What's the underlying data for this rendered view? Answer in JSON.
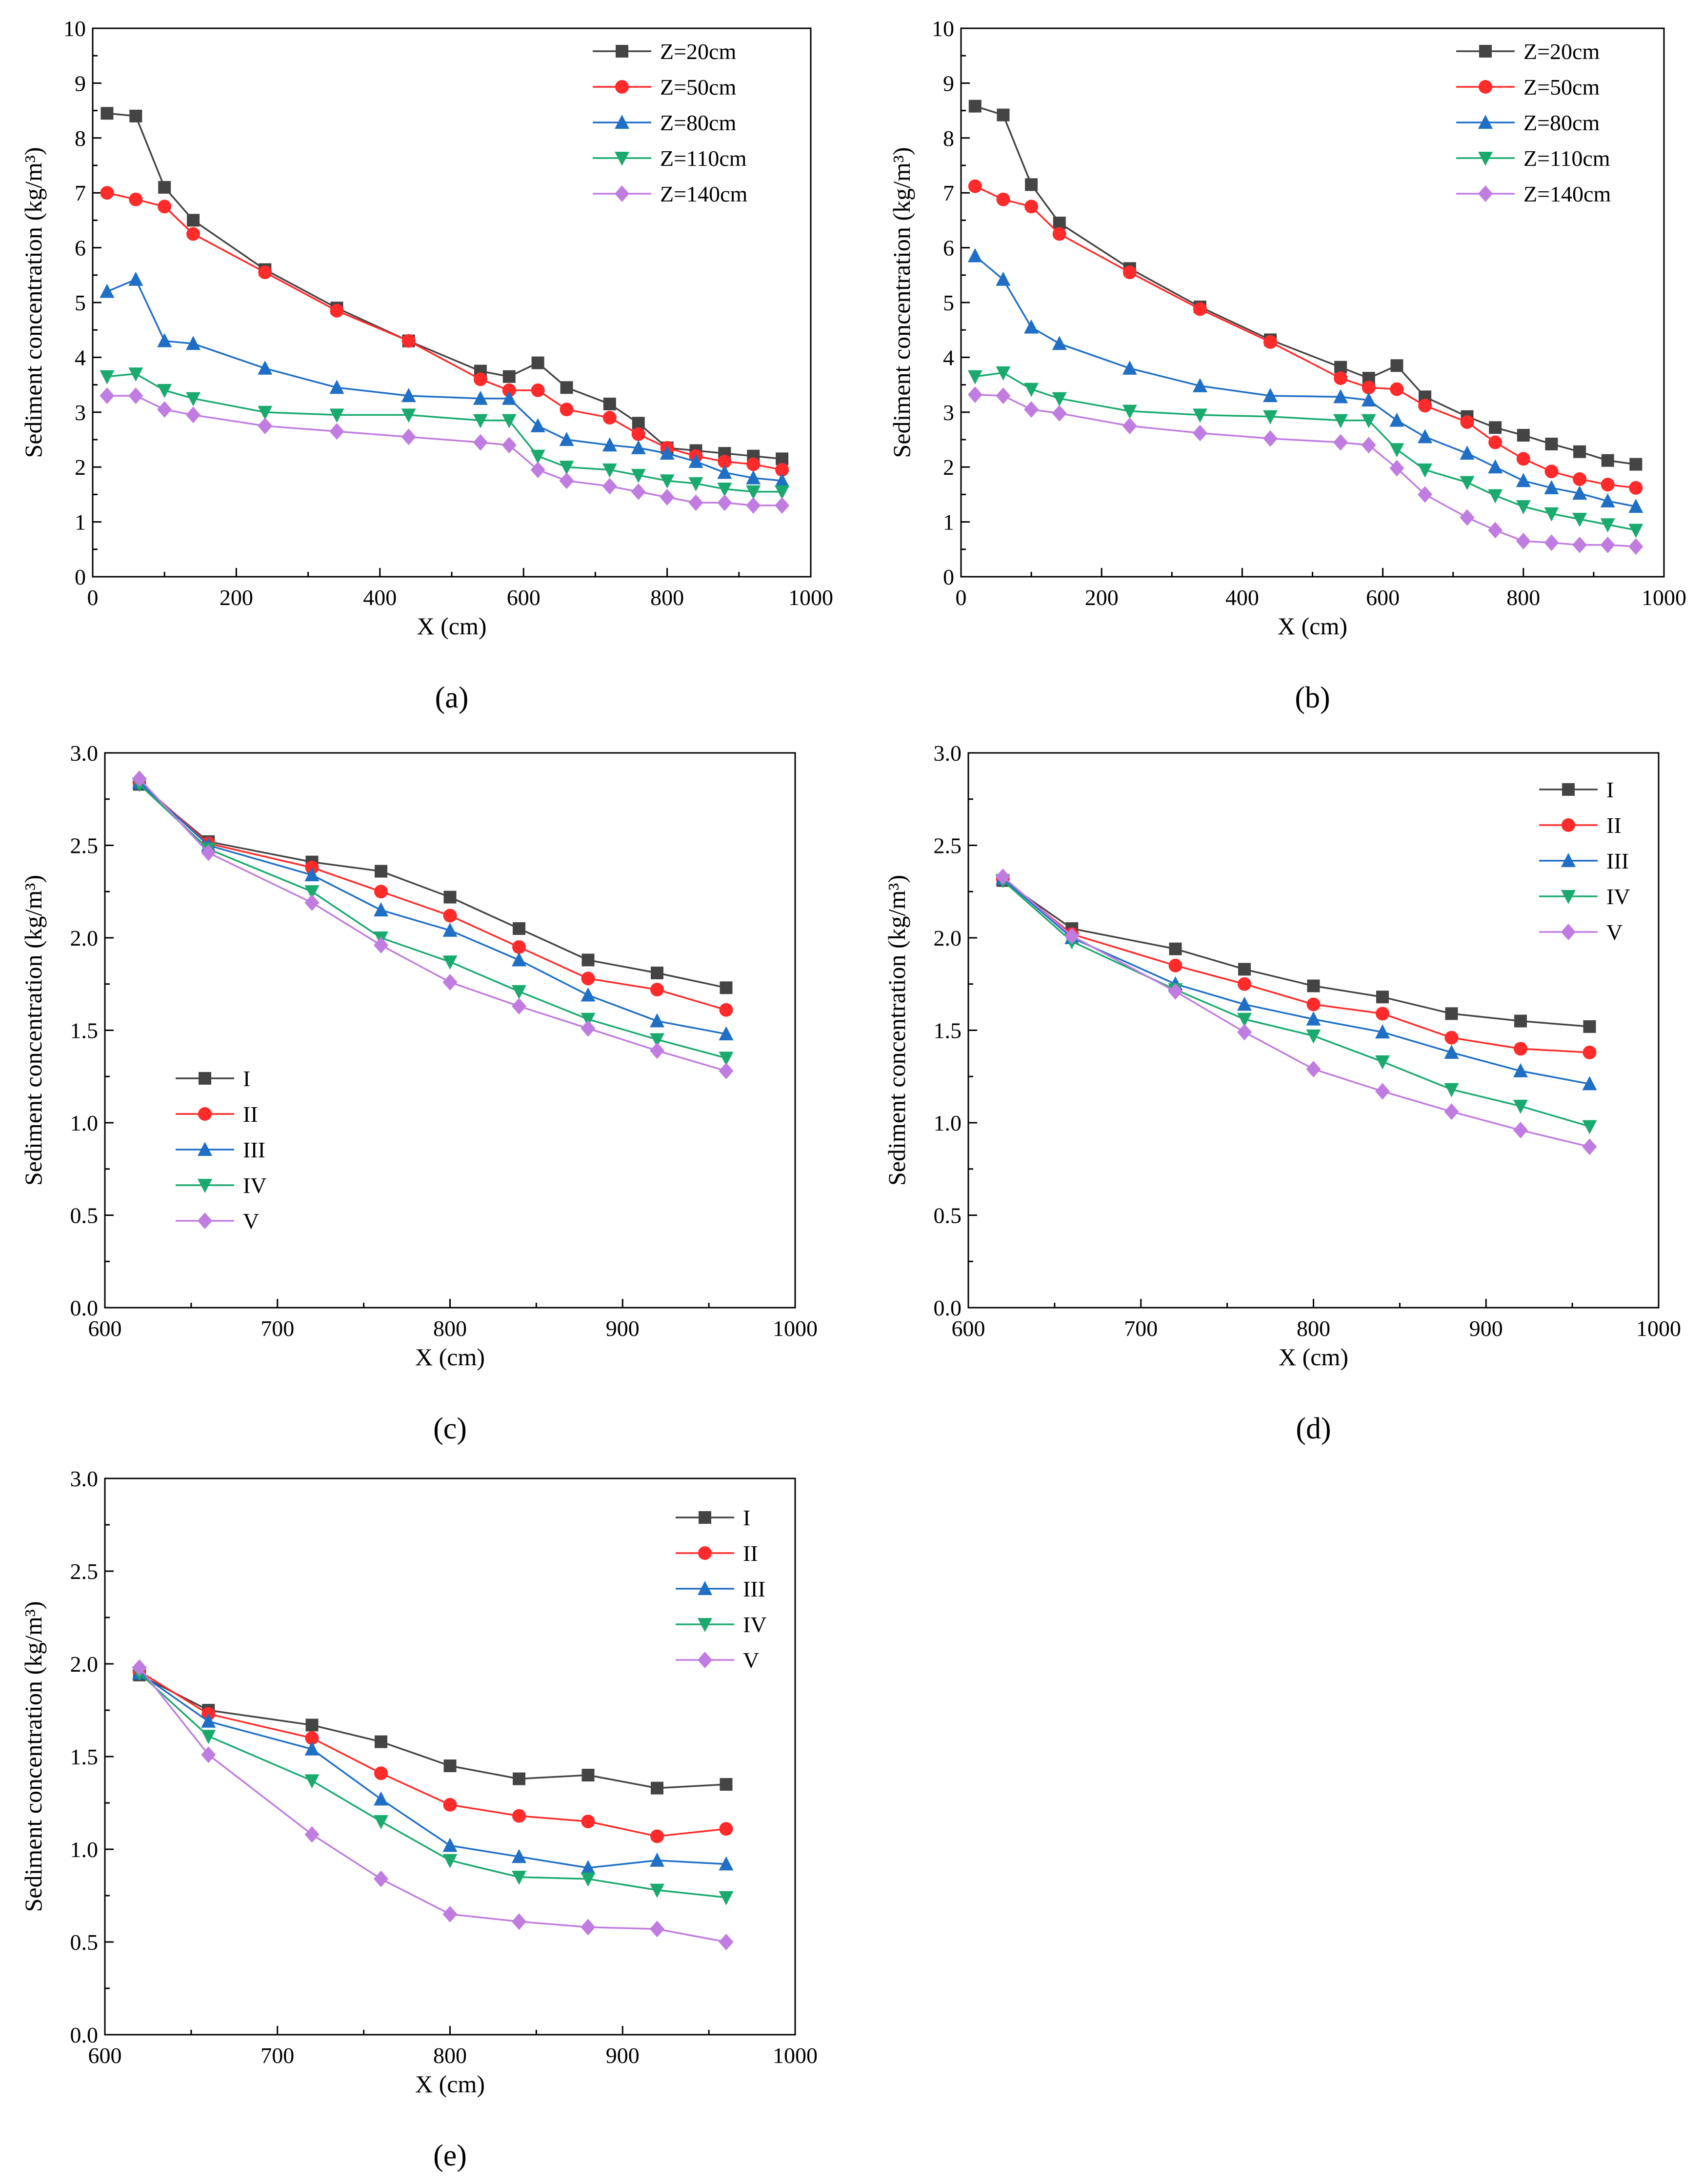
{
  "chart_data": [
    {
      "id": "a",
      "panel_label": "(a)",
      "type": "line",
      "xlabel": "X (cm)",
      "ylabel": "Sediment concentration (kg/m³)",
      "xlim": [
        0,
        1000
      ],
      "ylim": [
        0,
        10
      ],
      "xticks": [
        0,
        200,
        400,
        600,
        800,
        1000
      ],
      "yticks": [
        0,
        1,
        2,
        3,
        4,
        5,
        6,
        7,
        8,
        9,
        10
      ],
      "x": [
        20,
        60,
        100,
        140,
        240,
        340,
        440,
        540,
        580,
        620,
        660,
        720,
        760,
        800,
        840,
        880,
        920,
        960
      ],
      "legend_position": "top-right",
      "series": [
        {
          "name": "Z=20cm",
          "color": "#444444",
          "marker": "square",
          "values": [
            8.45,
            8.4,
            7.1,
            6.5,
            5.6,
            4.9,
            4.3,
            3.75,
            3.65,
            3.9,
            3.45,
            3.15,
            2.8,
            2.35,
            2.3,
            2.25,
            2.2,
            2.15
          ]
        },
        {
          "name": "Z=50cm",
          "color": "#ff2a2a",
          "marker": "circle",
          "values": [
            7.0,
            6.88,
            6.75,
            6.25,
            5.55,
            4.85,
            4.3,
            3.6,
            3.4,
            3.4,
            3.05,
            2.9,
            2.6,
            2.35,
            2.2,
            2.1,
            2.05,
            1.95
          ]
        },
        {
          "name": "Z=80cm",
          "color": "#1f6fc6",
          "marker": "triangle-up",
          "values": [
            5.2,
            5.42,
            4.3,
            4.25,
            3.8,
            3.45,
            3.3,
            3.25,
            3.25,
            2.75,
            2.5,
            2.4,
            2.35,
            2.25,
            2.1,
            1.9,
            1.8,
            1.75
          ]
        },
        {
          "name": "Z=110cm",
          "color": "#1aaa6e",
          "marker": "triangle-down",
          "values": [
            3.65,
            3.7,
            3.4,
            3.25,
            3.0,
            2.95,
            2.95,
            2.85,
            2.85,
            2.2,
            2.0,
            1.95,
            1.85,
            1.75,
            1.7,
            1.6,
            1.55,
            1.55
          ]
        },
        {
          "name": "Z=140cm",
          "color": "#c07ce0",
          "marker": "diamond",
          "values": [
            3.3,
            3.3,
            3.05,
            2.95,
            2.75,
            2.65,
            2.55,
            2.45,
            2.4,
            1.95,
            1.75,
            1.65,
            1.55,
            1.45,
            1.35,
            1.35,
            1.3,
            1.3
          ]
        }
      ]
    },
    {
      "id": "b",
      "panel_label": "(b)",
      "type": "line",
      "xlabel": "X (cm)",
      "ylabel": "Sediment concentration (kg/m³)",
      "xlim": [
        0,
        1000
      ],
      "ylim": [
        0,
        10
      ],
      "xticks": [
        0,
        200,
        400,
        600,
        800,
        1000
      ],
      "yticks": [
        0,
        1,
        2,
        3,
        4,
        5,
        6,
        7,
        8,
        9,
        10
      ],
      "x": [
        20,
        60,
        100,
        140,
        240,
        340,
        440,
        540,
        580,
        620,
        660,
        720,
        760,
        800,
        840,
        880,
        920,
        960
      ],
      "legend_position": "top-right",
      "series": [
        {
          "name": "Z=20cm",
          "color": "#444444",
          "marker": "square",
          "values": [
            8.58,
            8.42,
            7.15,
            6.45,
            5.62,
            4.92,
            4.32,
            3.82,
            3.62,
            3.85,
            3.28,
            2.92,
            2.72,
            2.58,
            2.42,
            2.28,
            2.12,
            2.05
          ]
        },
        {
          "name": "Z=50cm",
          "color": "#ff2a2a",
          "marker": "circle",
          "values": [
            7.12,
            6.88,
            6.75,
            6.25,
            5.55,
            4.88,
            4.28,
            3.62,
            3.45,
            3.42,
            3.12,
            2.82,
            2.45,
            2.15,
            1.92,
            1.78,
            1.68,
            1.62
          ]
        },
        {
          "name": "Z=80cm",
          "color": "#1f6fc6",
          "marker": "triangle-up",
          "values": [
            5.85,
            5.42,
            4.55,
            4.25,
            3.8,
            3.48,
            3.3,
            3.28,
            3.22,
            2.85,
            2.55,
            2.25,
            2.0,
            1.75,
            1.62,
            1.52,
            1.38,
            1.28
          ]
        },
        {
          "name": "Z=110cm",
          "color": "#1aaa6e",
          "marker": "triangle-down",
          "values": [
            3.65,
            3.72,
            3.42,
            3.25,
            3.02,
            2.95,
            2.92,
            2.85,
            2.85,
            2.32,
            1.95,
            1.72,
            1.48,
            1.28,
            1.15,
            1.05,
            0.95,
            0.85
          ]
        },
        {
          "name": "Z=140cm",
          "color": "#c07ce0",
          "marker": "diamond",
          "values": [
            3.32,
            3.3,
            3.05,
            2.98,
            2.75,
            2.62,
            2.52,
            2.45,
            2.4,
            1.98,
            1.5,
            1.08,
            0.85,
            0.65,
            0.62,
            0.58,
            0.58,
            0.55
          ]
        }
      ]
    },
    {
      "id": "c",
      "panel_label": "(c)",
      "type": "line",
      "xlabel": "X (cm)",
      "ylabel": "Sediment concentration (kg/m³)",
      "xlim": [
        600,
        1000
      ],
      "ylim": [
        0,
        3
      ],
      "xticks": [
        600,
        700,
        800,
        900,
        1000
      ],
      "yticks": [
        0.0,
        0.5,
        1.0,
        1.5,
        2.0,
        2.5,
        3.0
      ],
      "x": [
        620,
        660,
        720,
        760,
        800,
        840,
        880,
        920,
        960
      ],
      "legend_position": "lower-left",
      "series": [
        {
          "name": "I",
          "color": "#444444",
          "marker": "square",
          "values": [
            2.83,
            2.52,
            2.41,
            2.36,
            2.22,
            2.05,
            1.88,
            1.81,
            1.73
          ]
        },
        {
          "name": "II",
          "color": "#ff2a2a",
          "marker": "circle",
          "values": [
            2.84,
            2.51,
            2.38,
            2.25,
            2.12,
            1.95,
            1.78,
            1.72,
            1.61
          ]
        },
        {
          "name": "III",
          "color": "#1f6fc6",
          "marker": "triangle-up",
          "values": [
            2.84,
            2.5,
            2.34,
            2.15,
            2.04,
            1.88,
            1.69,
            1.55,
            1.48
          ]
        },
        {
          "name": "IV",
          "color": "#1aaa6e",
          "marker": "triangle-down",
          "values": [
            2.83,
            2.48,
            2.25,
            2.0,
            1.87,
            1.71,
            1.56,
            1.45,
            1.35
          ]
        },
        {
          "name": "V",
          "color": "#c07ce0",
          "marker": "diamond",
          "values": [
            2.86,
            2.46,
            2.19,
            1.96,
            1.76,
            1.63,
            1.51,
            1.39,
            1.28
          ]
        }
      ]
    },
    {
      "id": "d",
      "panel_label": "(d)",
      "type": "line",
      "xlabel": "X (cm)",
      "ylabel": "Sediment concentration (kg/m³)",
      "xlim": [
        600,
        1000
      ],
      "ylim": [
        0,
        3
      ],
      "xticks": [
        600,
        700,
        800,
        900,
        1000
      ],
      "yticks": [
        0.0,
        0.5,
        1.0,
        1.5,
        2.0,
        2.5,
        3.0
      ],
      "x": [
        620,
        660,
        720,
        760,
        800,
        840,
        880,
        920,
        960
      ],
      "legend_position": "top-right",
      "series": [
        {
          "name": "I",
          "color": "#444444",
          "marker": "square",
          "values": [
            2.31,
            2.05,
            1.94,
            1.83,
            1.74,
            1.68,
            1.59,
            1.55,
            1.52
          ]
        },
        {
          "name": "II",
          "color": "#ff2a2a",
          "marker": "circle",
          "values": [
            2.32,
            2.02,
            1.85,
            1.75,
            1.64,
            1.59,
            1.46,
            1.4,
            1.38
          ]
        },
        {
          "name": "III",
          "color": "#1f6fc6",
          "marker": "triangle-up",
          "values": [
            2.32,
            2.0,
            1.75,
            1.64,
            1.56,
            1.49,
            1.38,
            1.28,
            1.21
          ]
        },
        {
          "name": "IV",
          "color": "#1aaa6e",
          "marker": "triangle-down",
          "values": [
            2.31,
            1.98,
            1.72,
            1.56,
            1.47,
            1.33,
            1.18,
            1.09,
            0.98
          ]
        },
        {
          "name": "V",
          "color": "#c07ce0",
          "marker": "diamond",
          "values": [
            2.33,
            2.01,
            1.71,
            1.49,
            1.29,
            1.17,
            1.06,
            0.96,
            0.87
          ]
        }
      ]
    },
    {
      "id": "e",
      "panel_label": "(e)",
      "type": "line",
      "xlabel": "X (cm)",
      "ylabel": "Sediment concentration (kg/m³)",
      "xlim": [
        600,
        1000
      ],
      "ylim": [
        0,
        3
      ],
      "xticks": [
        600,
        700,
        800,
        900,
        1000
      ],
      "yticks": [
        0.0,
        0.5,
        1.0,
        1.5,
        2.0,
        2.5,
        3.0
      ],
      "x": [
        620,
        660,
        720,
        760,
        800,
        840,
        880,
        920,
        960
      ],
      "legend_position": "top-right",
      "series": [
        {
          "name": "I",
          "color": "#444444",
          "marker": "square",
          "values": [
            1.94,
            1.75,
            1.67,
            1.58,
            1.45,
            1.38,
            1.4,
            1.33,
            1.35
          ]
        },
        {
          "name": "II",
          "color": "#ff2a2a",
          "marker": "circle",
          "values": [
            1.96,
            1.73,
            1.6,
            1.41,
            1.24,
            1.18,
            1.15,
            1.07,
            1.11
          ]
        },
        {
          "name": "III",
          "color": "#1f6fc6",
          "marker": "triangle-up",
          "values": [
            1.95,
            1.69,
            1.54,
            1.27,
            1.02,
            0.96,
            0.9,
            0.94,
            0.92
          ]
        },
        {
          "name": "IV",
          "color": "#1aaa6e",
          "marker": "triangle-down",
          "values": [
            1.95,
            1.61,
            1.37,
            1.15,
            0.94,
            0.85,
            0.84,
            0.78,
            0.74
          ]
        },
        {
          "name": "V",
          "color": "#c07ce0",
          "marker": "diamond",
          "values": [
            1.98,
            1.51,
            1.08,
            0.84,
            0.65,
            0.61,
            0.58,
            0.57,
            0.5
          ]
        }
      ]
    }
  ]
}
